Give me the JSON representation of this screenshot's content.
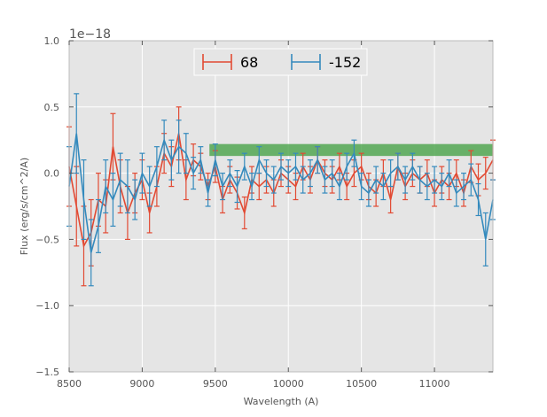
{
  "chart_data": {
    "type": "line",
    "title": "",
    "xlabel": "Wavelength (A)",
    "ylabel": "Flux (erg/s/cm^2/A)",
    "offset_text": "1e−18",
    "xlim": [
      8500,
      11400
    ],
    "ylim": [
      -1.5,
      1.0
    ],
    "scale": 1e-18,
    "x_ticks": [
      8500,
      9000,
      9500,
      10000,
      10500,
      11000
    ],
    "x_tick_labels": [
      "8500",
      "9000",
      "9500",
      "10000",
      "10500",
      "11000"
    ],
    "y_ticks": [
      1.0,
      0.5,
      0.0,
      -0.5,
      -1.0,
      -1.5
    ],
    "y_tick_labels": [
      "1.0",
      "0.5",
      "0.0",
      "−0.5",
      "−1.0",
      "−1.5"
    ],
    "grid": true,
    "legend_position": "top-center",
    "band": {
      "x_range": [
        9460,
        11400
      ],
      "y_range": [
        0.13,
        0.22
      ],
      "color": "#3d9d3d"
    },
    "series": [
      {
        "name": "68",
        "color": "#e24a33",
        "x": [
          8500,
          8550,
          8600,
          8650,
          8700,
          8750,
          8800,
          8850,
          8900,
          8950,
          9000,
          9050,
          9100,
          9150,
          9200,
          9250,
          9300,
          9350,
          9400,
          9450,
          9500,
          9550,
          9600,
          9650,
          9700,
          9750,
          9800,
          9850,
          9900,
          9950,
          10000,
          10050,
          10100,
          10150,
          10200,
          10250,
          10300,
          10350,
          10400,
          10450,
          10500,
          10550,
          10600,
          10650,
          10700,
          10750,
          10800,
          10850,
          10900,
          10950,
          11000,
          11050,
          11100,
          11150,
          11200,
          11250,
          11300,
          11350,
          11400
        ],
        "y": [
          0.05,
          -0.25,
          -0.55,
          -0.45,
          -0.2,
          -0.25,
          0.2,
          -0.1,
          -0.3,
          -0.15,
          -0.05,
          -0.3,
          -0.1,
          0.15,
          0.05,
          0.3,
          -0.05,
          0.1,
          0.05,
          -0.1,
          0.05,
          -0.2,
          -0.05,
          -0.15,
          -0.3,
          -0.05,
          -0.1,
          -0.05,
          -0.15,
          0.0,
          -0.05,
          -0.1,
          0.05,
          -0.05,
          0.1,
          0.0,
          -0.05,
          0.05,
          -0.1,
          0.0,
          0.05,
          -0.1,
          -0.15,
          0.0,
          -0.2,
          0.05,
          -0.1,
          0.0,
          -0.05,
          0.0,
          -0.15,
          -0.05,
          -0.1,
          0.0,
          -0.15,
          0.05,
          -0.05,
          0.0,
          0.1
        ],
        "err": [
          0.3,
          0.3,
          0.3,
          0.25,
          0.2,
          0.2,
          0.25,
          0.2,
          0.2,
          0.15,
          0.15,
          0.15,
          0.15,
          0.15,
          0.15,
          0.2,
          0.15,
          0.12,
          0.1,
          0.1,
          0.12,
          0.1,
          0.1,
          0.12,
          0.12,
          0.1,
          0.1,
          0.1,
          0.1,
          0.1,
          0.1,
          0.1,
          0.1,
          0.1,
          0.1,
          0.1,
          0.1,
          0.1,
          0.1,
          0.1,
          0.1,
          0.1,
          0.1,
          0.1,
          0.1,
          0.1,
          0.1,
          0.1,
          0.1,
          0.1,
          0.1,
          0.1,
          0.1,
          0.1,
          0.1,
          0.12,
          0.12,
          0.12,
          0.15
        ]
      },
      {
        "name": "-152",
        "color": "#348abd",
        "x": [
          8500,
          8550,
          8600,
          8650,
          8700,
          8750,
          8800,
          8850,
          8900,
          8950,
          9000,
          9050,
          9100,
          9150,
          9200,
          9250,
          9300,
          9350,
          9400,
          9450,
          9500,
          9550,
          9600,
          9650,
          9700,
          9750,
          9800,
          9850,
          9900,
          9950,
          10000,
          10050,
          10100,
          10150,
          10200,
          10250,
          10300,
          10350,
          10400,
          10450,
          10500,
          10550,
          10600,
          10650,
          10700,
          10750,
          10800,
          10850,
          10900,
          10950,
          11000,
          11050,
          11100,
          11150,
          11200,
          11250,
          11300,
          11350,
          11400
        ],
        "y": [
          -0.1,
          0.3,
          -0.2,
          -0.6,
          -0.4,
          -0.1,
          -0.2,
          -0.05,
          -0.1,
          -0.2,
          0.0,
          -0.1,
          0.05,
          0.25,
          0.1,
          0.2,
          0.15,
          0.0,
          0.1,
          -0.15,
          0.1,
          -0.1,
          0.0,
          -0.1,
          0.05,
          -0.1,
          0.1,
          0.0,
          -0.05,
          0.05,
          0.0,
          0.05,
          -0.05,
          0.0,
          0.1,
          -0.05,
          0.0,
          -0.1,
          0.05,
          0.15,
          -0.1,
          -0.15,
          -0.05,
          -0.1,
          0.0,
          0.05,
          -0.05,
          0.05,
          -0.05,
          -0.1,
          -0.05,
          -0.1,
          0.0,
          -0.15,
          -0.1,
          -0.05,
          -0.2,
          -0.5,
          -0.2
        ],
        "err": [
          0.3,
          0.3,
          0.3,
          0.25,
          0.2,
          0.2,
          0.2,
          0.2,
          0.2,
          0.15,
          0.15,
          0.15,
          0.15,
          0.15,
          0.15,
          0.2,
          0.15,
          0.12,
          0.1,
          0.1,
          0.12,
          0.1,
          0.1,
          0.12,
          0.1,
          0.1,
          0.1,
          0.1,
          0.1,
          0.1,
          0.1,
          0.1,
          0.1,
          0.1,
          0.1,
          0.1,
          0.1,
          0.1,
          0.1,
          0.1,
          0.1,
          0.1,
          0.1,
          0.1,
          0.1,
          0.1,
          0.1,
          0.1,
          0.1,
          0.1,
          0.1,
          0.1,
          0.1,
          0.1,
          0.1,
          0.12,
          0.12,
          0.2,
          0.15
        ]
      }
    ]
  }
}
